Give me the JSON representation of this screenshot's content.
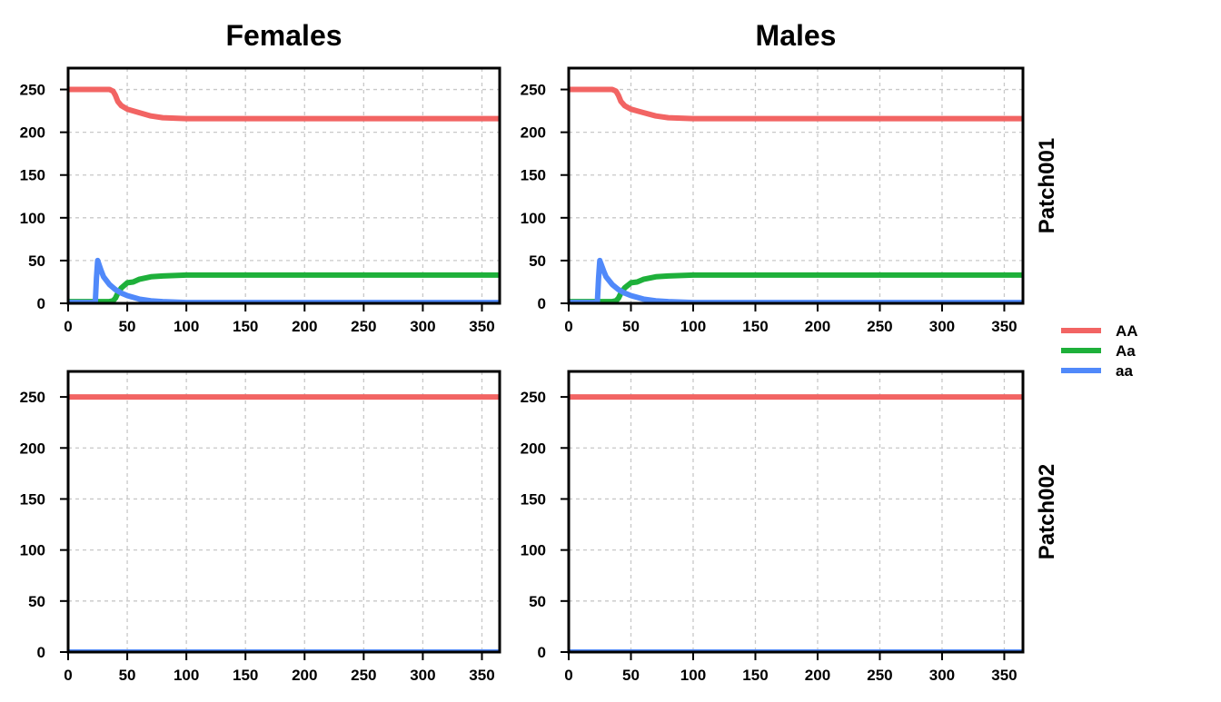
{
  "chart_data": {
    "type": "line",
    "columns": [
      "Females",
      "Males"
    ],
    "rows": [
      "Patch001",
      "Patch002"
    ],
    "xlim": [
      0,
      365
    ],
    "ylim": [
      0,
      275
    ],
    "xticks": [
      0,
      50,
      100,
      150,
      200,
      250,
      300,
      350
    ],
    "yticks": [
      0,
      50,
      100,
      150,
      200,
      250
    ],
    "grid": true,
    "legend": {
      "placement": "right",
      "entries": [
        {
          "name": "AA",
          "color": "#F26463"
        },
        {
          "name": "Aa",
          "color": "#1EB03A"
        },
        {
          "name": "aa",
          "color": "#5089FA"
        }
      ]
    },
    "panels": [
      {
        "column": "Females",
        "row": "Patch001",
        "series": [
          {
            "name": "AA",
            "x": [
              0,
              35,
              38,
              40,
              42,
              45,
              50,
              55,
              60,
              70,
              80,
              100,
              150,
              365
            ],
            "y": [
              250,
              250,
              248,
              243,
              236,
              231,
              227,
              225,
              223,
              219,
              217,
              216,
              216,
              216
            ]
          },
          {
            "name": "Aa",
            "x": [
              0,
              35,
              38,
              40,
              42,
              45,
              50,
              55,
              60,
              70,
              80,
              100,
              150,
              365
            ],
            "y": [
              2,
              2,
              3,
              6,
              12,
              18,
              24,
              25,
              28,
              31,
              32,
              33,
              33,
              33
            ]
          },
          {
            "name": "aa",
            "x": [
              0,
              23,
              24,
              25,
              26,
              28,
              30,
              35,
              40,
              45,
              50,
              60,
              70,
              80,
              100,
              365
            ],
            "y": [
              1,
              1,
              30,
              50,
              46,
              38,
              31,
              22,
              16,
              12,
              9,
              5,
              3,
              2,
              1,
              1
            ]
          }
        ]
      },
      {
        "column": "Males",
        "row": "Patch001",
        "series": [
          {
            "name": "AA",
            "x": [
              0,
              35,
              38,
              40,
              42,
              45,
              50,
              55,
              60,
              70,
              80,
              100,
              150,
              365
            ],
            "y": [
              250,
              250,
              248,
              243,
              236,
              231,
              227,
              225,
              223,
              219,
              217,
              216,
              216,
              216
            ]
          },
          {
            "name": "Aa",
            "x": [
              0,
              35,
              38,
              40,
              42,
              45,
              50,
              55,
              60,
              70,
              80,
              100,
              150,
              365
            ],
            "y": [
              2,
              2,
              3,
              6,
              12,
              18,
              24,
              25,
              28,
              31,
              32,
              33,
              33,
              33
            ]
          },
          {
            "name": "aa",
            "x": [
              0,
              23,
              24,
              25,
              26,
              28,
              30,
              35,
              40,
              45,
              50,
              60,
              70,
              80,
              100,
              365
            ],
            "y": [
              1,
              1,
              30,
              50,
              46,
              38,
              31,
              22,
              16,
              12,
              9,
              5,
              3,
              2,
              1,
              1
            ]
          }
        ]
      },
      {
        "column": "Females",
        "row": "Patch002",
        "series": [
          {
            "name": "AA",
            "x": [
              0,
              365
            ],
            "y": [
              250,
              250
            ]
          },
          {
            "name": "Aa",
            "x": [
              0,
              365
            ],
            "y": [
              0,
              0
            ]
          },
          {
            "name": "aa",
            "x": [
              0,
              365
            ],
            "y": [
              0,
              0
            ]
          }
        ]
      },
      {
        "column": "Males",
        "row": "Patch002",
        "series": [
          {
            "name": "AA",
            "x": [
              0,
              365
            ],
            "y": [
              250,
              250
            ]
          },
          {
            "name": "Aa",
            "x": [
              0,
              365
            ],
            "y": [
              0,
              0
            ]
          },
          {
            "name": "aa",
            "x": [
              0,
              365
            ],
            "y": [
              0,
              0
            ]
          }
        ]
      }
    ]
  }
}
